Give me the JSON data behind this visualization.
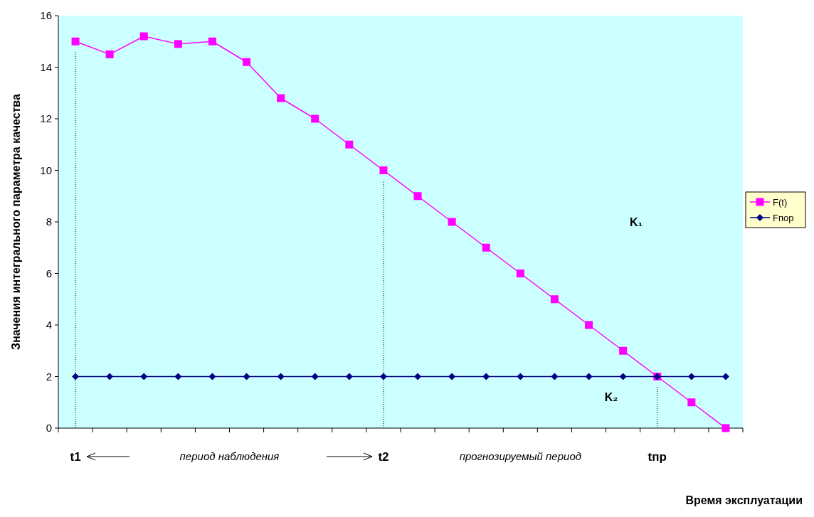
{
  "chart_data": {
    "type": "line",
    "xlabel": "Время эксплуатации",
    "ylabel": "Значения интегрального параметра качества",
    "categories": [
      "t1",
      null,
      null,
      null,
      null,
      null,
      null,
      null,
      null,
      "t2",
      null,
      null,
      null,
      null,
      null,
      null,
      null,
      "tпр",
      null,
      null
    ],
    "ylim": [
      0,
      16
    ],
    "yticks": [
      0,
      2,
      4,
      6,
      8,
      10,
      12,
      14,
      16
    ],
    "grid": false,
    "legend": "right",
    "series": [
      {
        "name": "F(t)",
        "color": "#ff00ff",
        "marker": "square",
        "values": [
          15,
          14.5,
          15.2,
          14.9,
          15,
          14.2,
          12.8,
          12,
          11,
          10,
          9,
          8,
          7,
          6,
          5,
          4,
          3,
          2,
          1,
          0
        ]
      },
      {
        "name": "Fпор",
        "color": "#000080",
        "marker": "diamond",
        "values": [
          2,
          2,
          2,
          2,
          2,
          2,
          2,
          2,
          2,
          2,
          2,
          2,
          2,
          2,
          2,
          2,
          2,
          2,
          2,
          2
        ]
      }
    ],
    "ref_lines": [
      {
        "axis": "x",
        "value": "t1",
        "line_style": "dotted"
      },
      {
        "axis": "x",
        "value": "t2",
        "line_style": "dotted"
      },
      {
        "axis": "x",
        "value": "tпр",
        "line_style": "dotted"
      }
    ],
    "annotations": [
      "период наблюдения",
      "прогнозируемый период",
      "K₁",
      "K₂"
    ]
  }
}
